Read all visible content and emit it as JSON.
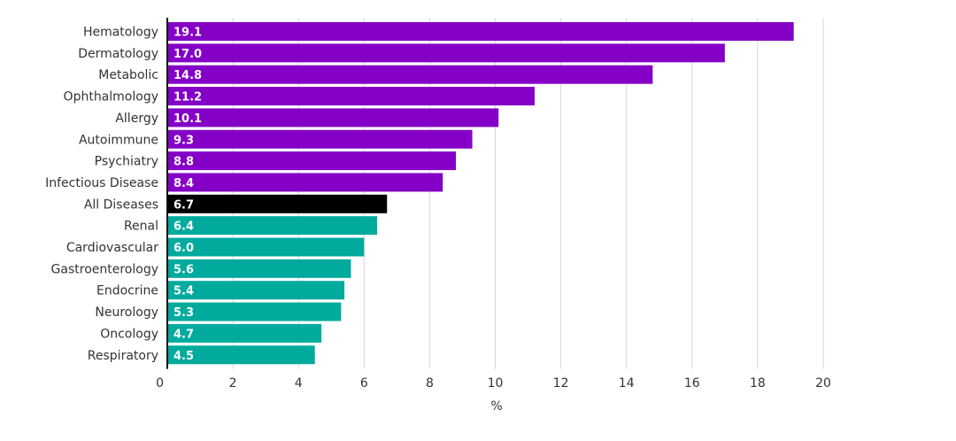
{
  "chart_data": {
    "type": "bar",
    "orientation": "horizontal",
    "title": "",
    "xlabel": "%",
    "ylabel": "",
    "xlim": [
      0,
      20
    ],
    "xticks": [
      0,
      2,
      4,
      6,
      8,
      10,
      12,
      14,
      16,
      18,
      20
    ],
    "grid": true,
    "categories": [
      "Hematology",
      "Dermatology",
      "Metabolic",
      "Ophthalmology",
      "Allergy",
      "Autoimmune",
      "Psychiatry",
      "Infectious Disease",
      "All Diseases",
      "Renal",
      "Cardiovascular",
      "Gastroenterology",
      "Endocrine",
      "Neurology",
      "Oncology",
      "Respiratory"
    ],
    "values": [
      19.1,
      17.0,
      14.8,
      11.2,
      10.1,
      9.3,
      8.8,
      8.4,
      6.7,
      6.4,
      6.0,
      5.6,
      5.4,
      5.3,
      4.7,
      4.5
    ],
    "value_labels": [
      "19.1",
      "17.0",
      "14.8",
      "11.2",
      "10.1",
      "9.3",
      "8.8",
      "8.4",
      "6.7",
      "6.4",
      "6.0",
      "5.6",
      "5.4",
      "5.3",
      "4.7",
      "4.5"
    ],
    "colors": {
      "above_average": "#8400c6",
      "average": "#000000",
      "below_average": "#00ab9e"
    },
    "bar_color_groups": [
      "above_average",
      "above_average",
      "above_average",
      "above_average",
      "above_average",
      "above_average",
      "above_average",
      "above_average",
      "average",
      "below_average",
      "below_average",
      "below_average",
      "below_average",
      "below_average",
      "below_average",
      "below_average"
    ]
  }
}
